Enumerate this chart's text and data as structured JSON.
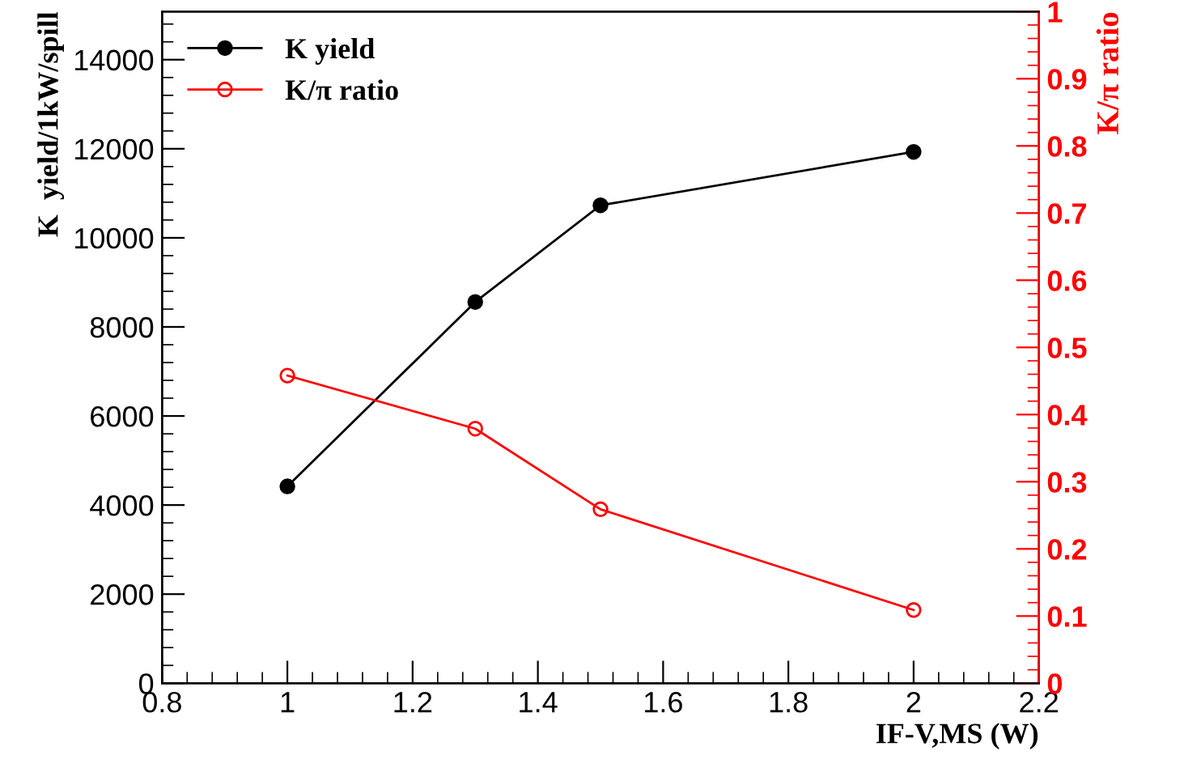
{
  "chart_data": {
    "type": "line",
    "xlabel": "IF-V,MS (W)",
    "ylabel": "K  yield/1kW/spill",
    "y2label": "K/π ratio",
    "x": [
      1,
      1.3,
      1.5,
      2
    ],
    "series": [
      {
        "name": "K yield",
        "color": "#000000",
        "values": [
          4420,
          8560,
          10730,
          11930
        ]
      },
      {
        "name": "K/π ratio",
        "color": "#ff0000",
        "axis": "y2",
        "values": [
          0.458,
          0.379,
          0.259,
          0.109
        ]
      }
    ],
    "xlim": [
      0.8,
      2.2
    ],
    "xticks": [
      0.8,
      1,
      1.2,
      1.4,
      1.6,
      1.8,
      2,
      2.2
    ],
    "ylim": [
      0,
      15080
    ],
    "yticks": [
      0,
      2000,
      4000,
      6000,
      8000,
      10000,
      12000,
      14000
    ],
    "y2lim": [
      0,
      1
    ],
    "y2ticks": [
      0,
      0.1,
      0.2,
      0.3,
      0.4,
      0.5,
      0.6,
      0.7,
      0.8,
      0.9,
      1
    ],
    "marker": "circle",
    "line_style": "solid",
    "legend": "top left",
    "grid": false
  }
}
